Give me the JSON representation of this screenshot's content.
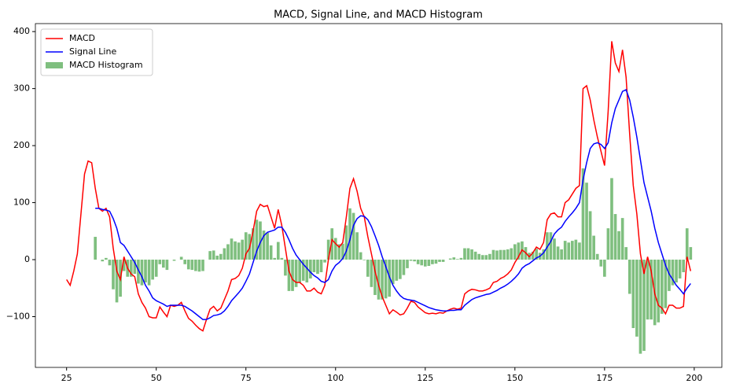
{
  "chart_data": {
    "type": "line",
    "title": "MACD, Signal Line, and MACD Histogram",
    "x": [
      25,
      26,
      27,
      28,
      29,
      30,
      31,
      32,
      33,
      34,
      35,
      36,
      37,
      38,
      39,
      40,
      41,
      42,
      43,
      44,
      45,
      46,
      47,
      48,
      49,
      50,
      51,
      52,
      53,
      54,
      55,
      56,
      57,
      58,
      59,
      60,
      61,
      62,
      63,
      64,
      65,
      66,
      67,
      68,
      69,
      70,
      71,
      72,
      73,
      74,
      75,
      76,
      77,
      78,
      79,
      80,
      81,
      82,
      83,
      84,
      85,
      86,
      87,
      88,
      89,
      90,
      91,
      92,
      93,
      94,
      95,
      96,
      97,
      98,
      99,
      100,
      101,
      102,
      103,
      104,
      105,
      106,
      107,
      108,
      109,
      110,
      111,
      112,
      113,
      114,
      115,
      116,
      117,
      118,
      119,
      120,
      121,
      122,
      123,
      124,
      125,
      126,
      127,
      128,
      129,
      130,
      131,
      132,
      133,
      134,
      135,
      136,
      137,
      138,
      139,
      140,
      141,
      142,
      143,
      144,
      145,
      146,
      147,
      148,
      149,
      150,
      151,
      152,
      153,
      154,
      155,
      156,
      157,
      158,
      159,
      160,
      161,
      162,
      163,
      164,
      165,
      166,
      167,
      168,
      169,
      170,
      171,
      172,
      173,
      174,
      175,
      176,
      177,
      178,
      179,
      180,
      181,
      182,
      183,
      184,
      185,
      186,
      187,
      188,
      189,
      190,
      191,
      192,
      193,
      194,
      195,
      196,
      197,
      198,
      199
    ],
    "series": [
      {
        "name": "MACD",
        "type": "line",
        "color": "red",
        "values": [
          -35,
          -45,
          -20,
          10,
          80,
          150,
          173,
          170,
          125,
          90,
          85,
          90,
          75,
          20,
          -20,
          -35,
          5,
          -15,
          -25,
          -30,
          -60,
          -75,
          -85,
          -100,
          -102,
          -102,
          -83,
          -92,
          -100,
          -80,
          -82,
          -80,
          -75,
          -90,
          -103,
          -108,
          -115,
          -121,
          -125,
          -105,
          -87,
          -82,
          -90,
          -85,
          -70,
          -55,
          -35,
          -33,
          -28,
          -15,
          10,
          20,
          50,
          85,
          97,
          93,
          95,
          75,
          55,
          88,
          60,
          20,
          -20,
          -35,
          -40,
          -40,
          -45,
          -55,
          -55,
          -50,
          -57,
          -60,
          -45,
          0,
          35,
          28,
          22,
          30,
          75,
          125,
          142,
          120,
          90,
          75,
          40,
          10,
          -20,
          -45,
          -65,
          -80,
          -95,
          -88,
          -92,
          -97,
          -95,
          -85,
          -73,
          -75,
          -83,
          -88,
          -93,
          -95,
          -94,
          -95,
          -93,
          -94,
          -90,
          -87,
          -85,
          -87,
          -85,
          -60,
          -55,
          -52,
          -53,
          -55,
          -55,
          -53,
          -50,
          -40,
          -38,
          -33,
          -30,
          -25,
          -18,
          -5,
          5,
          17,
          12,
          5,
          12,
          22,
          18,
          30,
          70,
          80,
          82,
          75,
          75,
          100,
          105,
          115,
          125,
          130,
          300,
          305,
          280,
          245,
          215,
          190,
          165,
          260,
          383,
          345,
          330,
          368,
          320,
          220,
          130,
          80,
          10,
          -25,
          5,
          -20,
          -60,
          -80,
          -85,
          -95,
          -80,
          -80,
          -85,
          -85,
          -82,
          5,
          -20
        ]
      },
      {
        "name": "Signal Line",
        "type": "line",
        "color": "blue",
        "values": [
          null,
          null,
          null,
          null,
          null,
          null,
          null,
          null,
          90,
          90,
          88,
          87,
          85,
          72,
          55,
          30,
          25,
          15,
          5,
          -5,
          -18,
          -30,
          -45,
          -55,
          -67,
          -72,
          -75,
          -78,
          -82,
          -80,
          -80,
          -80,
          -80,
          -82,
          -86,
          -90,
          -95,
          -100,
          -105,
          -105,
          -102,
          -98,
          -97,
          -95,
          -90,
          -82,
          -72,
          -65,
          -58,
          -50,
          -38,
          -25,
          -5,
          15,
          30,
          42,
          48,
          50,
          52,
          57,
          57,
          48,
          35,
          20,
          8,
          0,
          -8,
          -15,
          -22,
          -28,
          -32,
          -38,
          -40,
          -35,
          -20,
          -10,
          -5,
          2,
          15,
          35,
          60,
          72,
          77,
          76,
          70,
          58,
          42,
          25,
          5,
          -12,
          -30,
          -45,
          -55,
          -63,
          -68,
          -70,
          -71,
          -72,
          -75,
          -78,
          -81,
          -84,
          -86,
          -88,
          -89,
          -90,
          -90,
          -89,
          -89,
          -88,
          -88,
          -80,
          -75,
          -70,
          -67,
          -65,
          -63,
          -61,
          -60,
          -57,
          -54,
          -50,
          -47,
          -43,
          -38,
          -32,
          -25,
          -15,
          -10,
          -7,
          -2,
          3,
          6,
          12,
          22,
          32,
          45,
          52,
          57,
          67,
          75,
          82,
          90,
          100,
          140,
          170,
          195,
          203,
          205,
          202,
          195,
          205,
          240,
          265,
          280,
          295,
          298,
          280,
          250,
          215,
          175,
          135,
          110,
          85,
          55,
          30,
          10,
          -10,
          -25,
          -35,
          -45,
          -52,
          -60,
          -50,
          -42
        ]
      },
      {
        "name": "MACD Histogram",
        "type": "bar",
        "color": "green",
        "alpha": 0.5,
        "values": [
          null,
          null,
          null,
          null,
          null,
          null,
          null,
          null,
          40,
          0,
          -3,
          3,
          -10,
          -52,
          -75,
          -65,
          -20,
          -30,
          -30,
          -25,
          -42,
          -45,
          -40,
          -45,
          -35,
          -30,
          -8,
          -14,
          -18,
          0,
          -2,
          0,
          5,
          -8,
          -17,
          -18,
          -20,
          -21,
          -20,
          0,
          15,
          16,
          7,
          10,
          20,
          27,
          37,
          32,
          30,
          35,
          48,
          45,
          55,
          70,
          67,
          51,
          47,
          25,
          3,
          31,
          3,
          -28,
          -55,
          -55,
          -48,
          -40,
          -37,
          -40,
          -33,
          -22,
          -25,
          -22,
          -5,
          35,
          55,
          38,
          27,
          28,
          60,
          90,
          82,
          48,
          13,
          -1,
          -30,
          -48,
          -62,
          -70,
          -70,
          -68,
          -65,
          -43,
          -37,
          -34,
          -27,
          -15,
          -2,
          -3,
          -8,
          -10,
          -12,
          -11,
          -8,
          -7,
          -4,
          -4,
          0,
          2,
          4,
          1,
          3,
          20,
          20,
          18,
          14,
          10,
          8,
          8,
          10,
          17,
          16,
          17,
          17,
          18,
          20,
          27,
          30,
          32,
          22,
          12,
          14,
          19,
          12,
          18,
          48,
          48,
          37,
          23,
          18,
          33,
          30,
          33,
          35,
          30,
          160,
          135,
          85,
          42,
          10,
          -12,
          -30,
          55,
          143,
          80,
          50,
          73,
          22,
          -60,
          -120,
          -135,
          -165,
          -160,
          -105,
          -105,
          -115,
          -110,
          -95,
          -85,
          -55,
          -45,
          -40,
          -33,
          -22,
          55,
          22
        ]
      }
    ],
    "xlim": [
      16.3,
      207.7
    ],
    "xticks": [
      25,
      50,
      75,
      100,
      125,
      150,
      175,
      200
    ],
    "ylim": [
      -189,
      414
    ],
    "yticks": [
      {
        "value": -100,
        "label": "−100"
      },
      0,
      100,
      200,
      300,
      400
    ],
    "legend": "upper left"
  }
}
